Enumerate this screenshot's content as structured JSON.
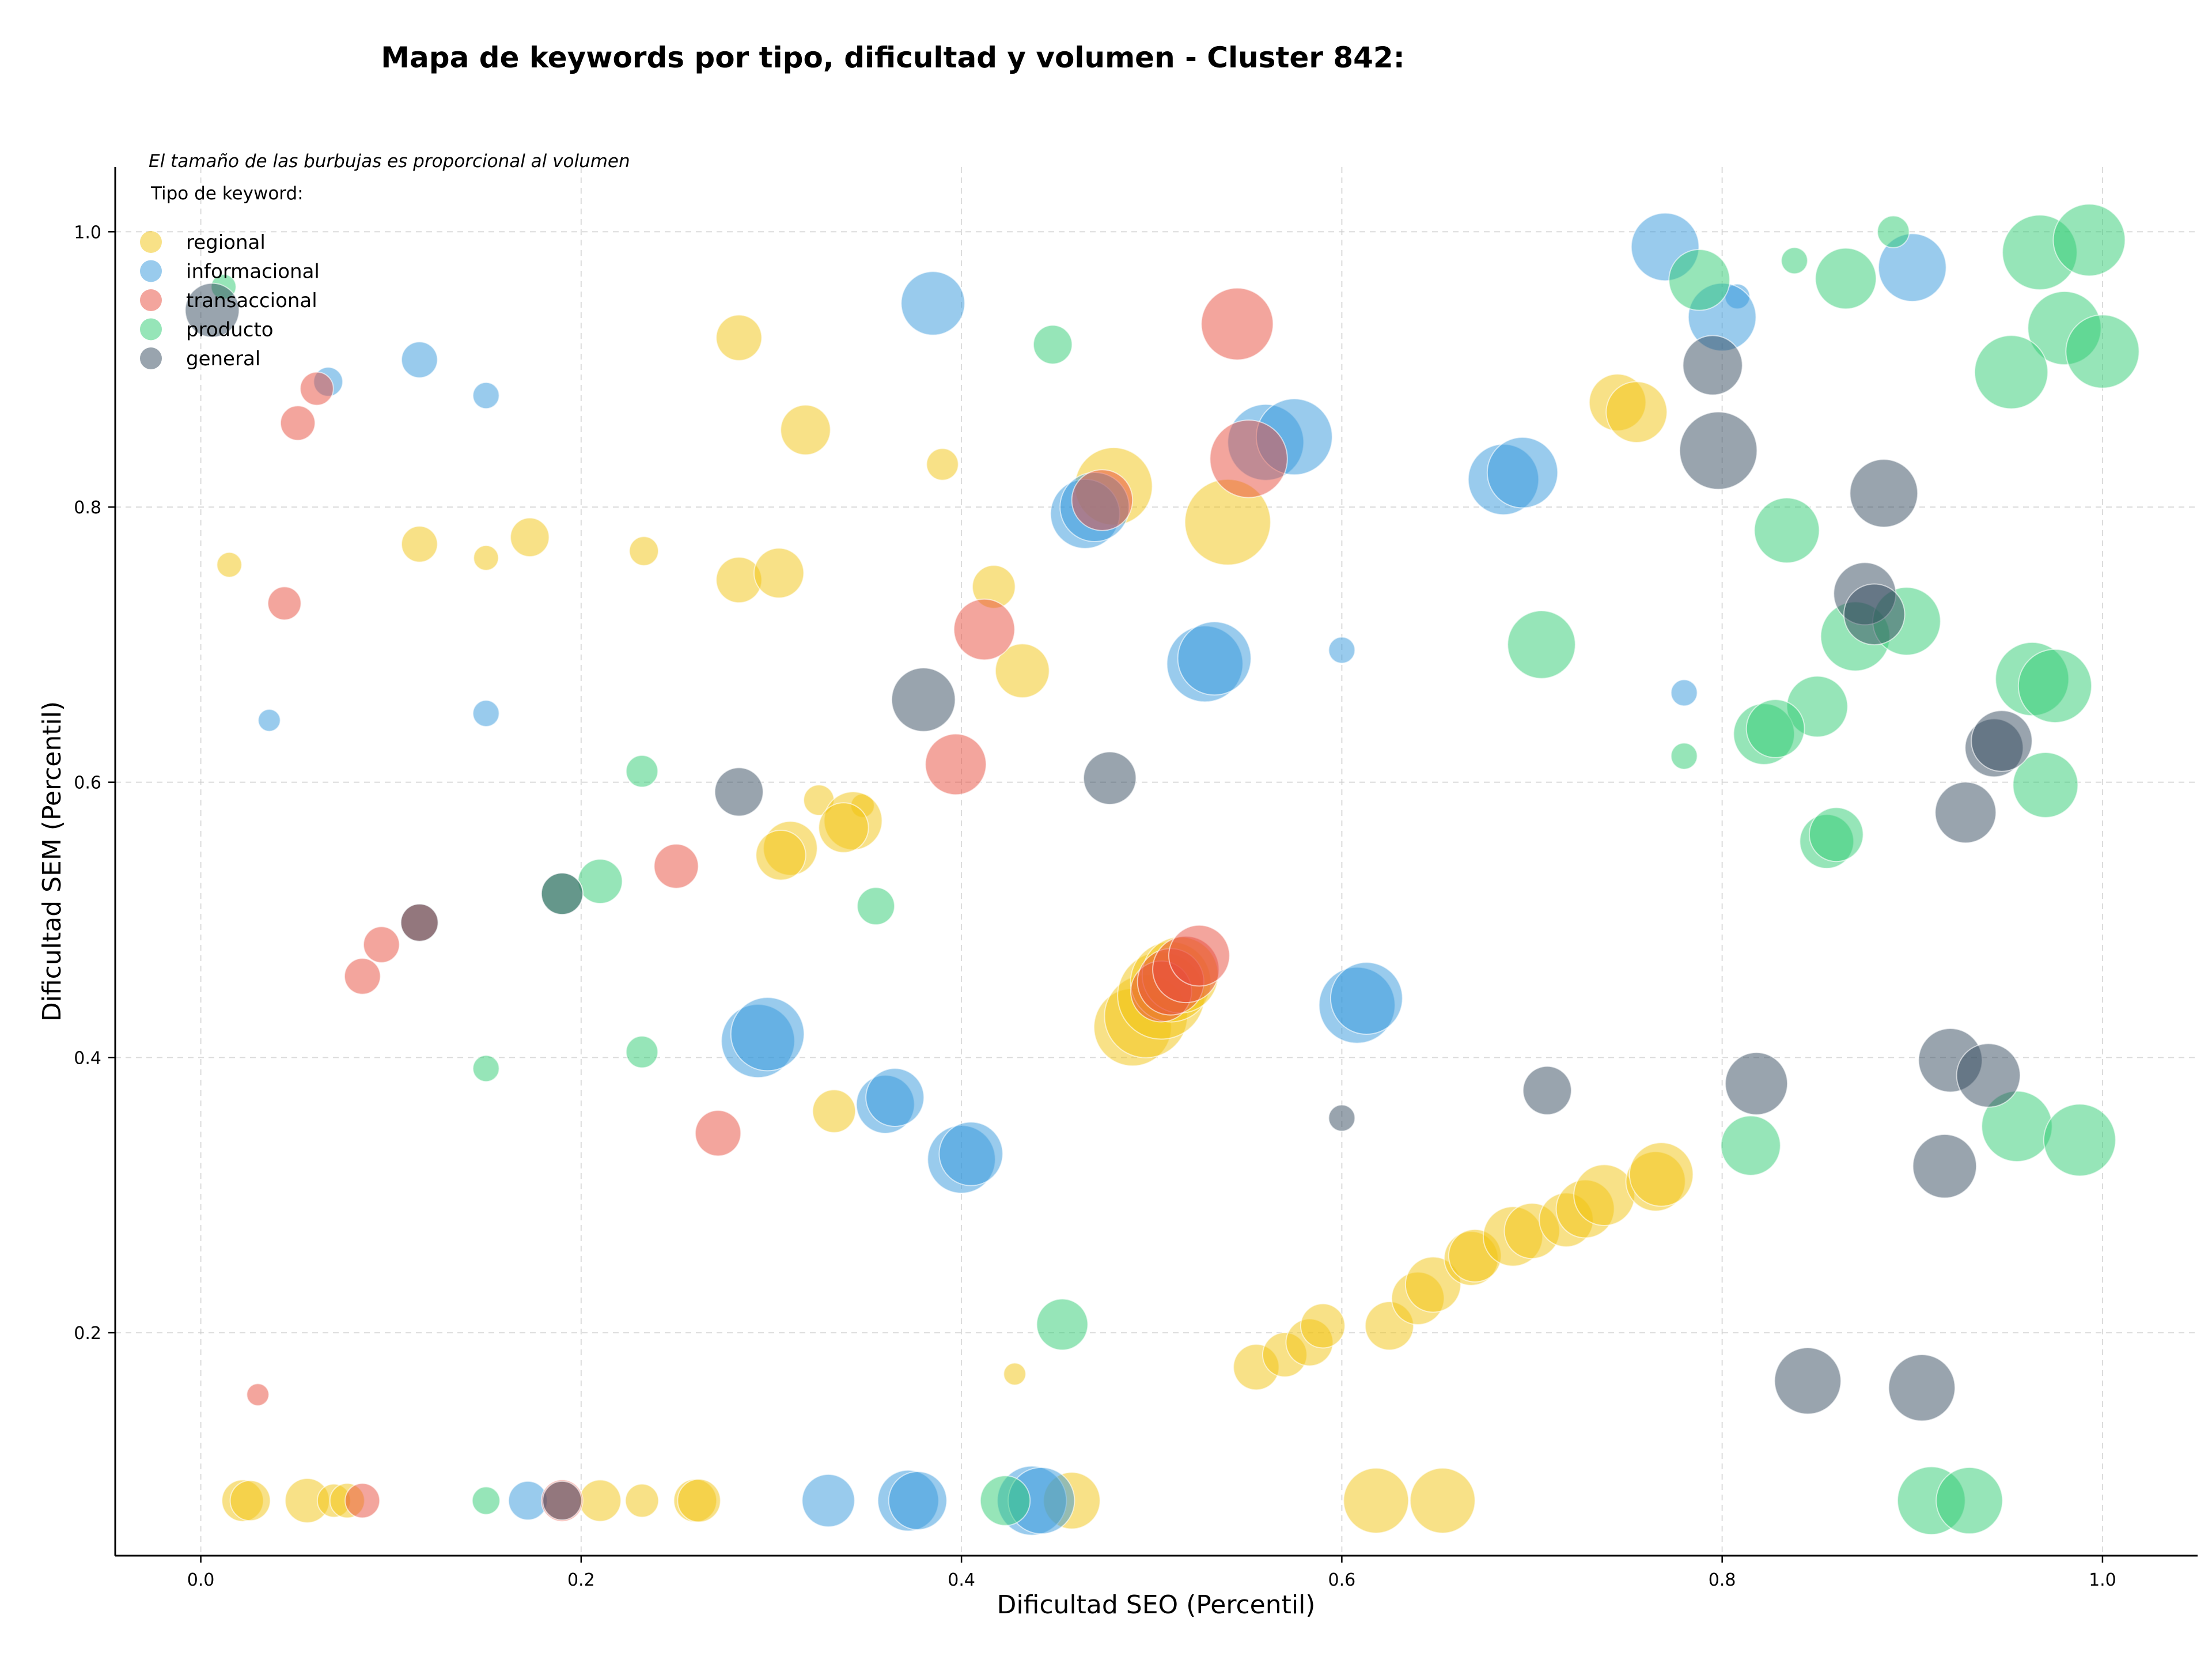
{
  "chart_data": {
    "type": "scatter",
    "title": "Mapa de keywords por tipo, dificultad y volumen - Cluster 842:",
    "xlabel": "Dificultad SEO (Percentil)",
    "ylabel": "Dificultad SEM (Percentil)",
    "xlim": [
      -0.045,
      1.05
    ],
    "ylim": [
      0.038,
      1.047
    ],
    "xticks": [
      "0.0",
      "0.2",
      "0.4",
      "0.6",
      "0.8",
      "1.0"
    ],
    "yticks": [
      "0.2",
      "0.4",
      "0.6",
      "0.8",
      "1.0"
    ],
    "grid": true,
    "size_note": "El tamaño de las burbujas es proporcional al volumen",
    "legend": {
      "title": "Tipo de keyword:",
      "placement": "top-left",
      "entries": [
        "regional",
        "informacional",
        "transaccional",
        "producto",
        "general"
      ]
    },
    "colors": {
      "regional": "#f1c40f",
      "informacional": "#3498db",
      "transaccional": "#e74c3c",
      "producto": "#2ecc71",
      "general": "#34495e"
    },
    "series": [
      {
        "name": "regional",
        "points": [
          {
            "x": 0.015,
            "y": 0.758,
            "s": 1.8
          },
          {
            "x": 0.115,
            "y": 0.773,
            "s": 2.6
          },
          {
            "x": 0.15,
            "y": 0.763,
            "s": 1.8
          },
          {
            "x": 0.173,
            "y": 0.778,
            "s": 2.8
          },
          {
            "x": 0.233,
            "y": 0.768,
            "s": 2.1
          },
          {
            "x": 0.283,
            "y": 0.923,
            "s": 3.3
          },
          {
            "x": 0.318,
            "y": 0.856,
            "s": 3.6
          },
          {
            "x": 0.39,
            "y": 0.831,
            "s": 2.3
          },
          {
            "x": 0.283,
            "y": 0.747,
            "s": 3.3
          },
          {
            "x": 0.304,
            "y": 0.752,
            "s": 3.6
          },
          {
            "x": 0.417,
            "y": 0.742,
            "s": 3.1
          },
          {
            "x": 0.432,
            "y": 0.681,
            "s": 3.9
          },
          {
            "x": 0.48,
            "y": 0.815,
            "s": 5.6
          },
          {
            "x": 0.54,
            "y": 0.789,
            "s": 6.2
          },
          {
            "x": 0.745,
            "y": 0.876,
            "s": 4.1
          },
          {
            "x": 0.755,
            "y": 0.869,
            "s": 4.4
          },
          {
            "x": 0.325,
            "y": 0.587,
            "s": 2.2
          },
          {
            "x": 0.348,
            "y": 0.583,
            "s": 1.7
          },
          {
            "x": 0.343,
            "y": 0.572,
            "s": 4.2
          },
          {
            "x": 0.338,
            "y": 0.567,
            "s": 3.6
          },
          {
            "x": 0.31,
            "y": 0.552,
            "s": 3.9
          },
          {
            "x": 0.305,
            "y": 0.547,
            "s": 3.6
          },
          {
            "x": 0.333,
            "y": 0.361,
            "s": 3.1
          },
          {
            "x": 0.428,
            "y": 0.17,
            "s": 1.6
          },
          {
            "x": 0.49,
            "y": 0.422,
            "s": 5.6
          },
          {
            "x": 0.497,
            "y": 0.43,
            "s": 6.0
          },
          {
            "x": 0.505,
            "y": 0.445,
            "s": 6.3
          },
          {
            "x": 0.51,
            "y": 0.455,
            "s": 5.8
          },
          {
            "x": 0.515,
            "y": 0.46,
            "s": 5.5
          },
          {
            "x": 0.555,
            "y": 0.175,
            "s": 3.3
          },
          {
            "x": 0.57,
            "y": 0.184,
            "s": 3.2
          },
          {
            "x": 0.583,
            "y": 0.193,
            "s": 3.4
          },
          {
            "x": 0.59,
            "y": 0.205,
            "s": 3.2
          },
          {
            "x": 0.625,
            "y": 0.205,
            "s": 3.5
          },
          {
            "x": 0.64,
            "y": 0.225,
            "s": 3.8
          },
          {
            "x": 0.648,
            "y": 0.235,
            "s": 4.0
          },
          {
            "x": 0.668,
            "y": 0.254,
            "s": 3.9
          },
          {
            "x": 0.67,
            "y": 0.256,
            "s": 3.8
          },
          {
            "x": 0.69,
            "y": 0.27,
            "s": 4.3
          },
          {
            "x": 0.7,
            "y": 0.274,
            "s": 4.0
          },
          {
            "x": 0.718,
            "y": 0.282,
            "s": 3.9
          },
          {
            "x": 0.728,
            "y": 0.29,
            "s": 4.2
          },
          {
            "x": 0.738,
            "y": 0.3,
            "s": 4.4
          },
          {
            "x": 0.765,
            "y": 0.31,
            "s": 4.3
          },
          {
            "x": 0.768,
            "y": 0.315,
            "s": 4.6
          },
          {
            "x": 0.022,
            "y": 0.078,
            "s": 3.0
          },
          {
            "x": 0.026,
            "y": 0.078,
            "s": 2.9
          },
          {
            "x": 0.056,
            "y": 0.078,
            "s": 3.2
          },
          {
            "x": 0.07,
            "y": 0.078,
            "s": 2.4
          },
          {
            "x": 0.077,
            "y": 0.078,
            "s": 2.5
          },
          {
            "x": 0.21,
            "y": 0.078,
            "s": 3.0
          },
          {
            "x": 0.232,
            "y": 0.078,
            "s": 2.4
          },
          {
            "x": 0.26,
            "y": 0.078,
            "s": 3.1
          },
          {
            "x": 0.262,
            "y": 0.078,
            "s": 3.1
          },
          {
            "x": 0.458,
            "y": 0.078,
            "s": 4.1
          },
          {
            "x": 0.618,
            "y": 0.078,
            "s": 4.7
          },
          {
            "x": 0.653,
            "y": 0.078,
            "s": 4.7
          }
        ]
      },
      {
        "name": "informacional",
        "points": [
          {
            "x": 0.067,
            "y": 0.891,
            "s": 2.1
          },
          {
            "x": 0.115,
            "y": 0.907,
            "s": 2.6
          },
          {
            "x": 0.15,
            "y": 0.881,
            "s": 1.9
          },
          {
            "x": 0.385,
            "y": 0.948,
            "s": 4.6
          },
          {
            "x": 0.036,
            "y": 0.645,
            "s": 1.6
          },
          {
            "x": 0.15,
            "y": 0.65,
            "s": 1.9
          },
          {
            "x": 0.465,
            "y": 0.795,
            "s": 5.0
          },
          {
            "x": 0.47,
            "y": 0.8,
            "s": 5.0
          },
          {
            "x": 0.56,
            "y": 0.847,
            "s": 5.5
          },
          {
            "x": 0.575,
            "y": 0.851,
            "s": 5.5
          },
          {
            "x": 0.528,
            "y": 0.686,
            "s": 5.5
          },
          {
            "x": 0.533,
            "y": 0.69,
            "s": 5.3
          },
          {
            "x": 0.6,
            "y": 0.696,
            "s": 1.9
          },
          {
            "x": 0.685,
            "y": 0.82,
            "s": 5.1
          },
          {
            "x": 0.695,
            "y": 0.825,
            "s": 5.1
          },
          {
            "x": 0.77,
            "y": 0.989,
            "s": 4.9
          },
          {
            "x": 0.808,
            "y": 0.953,
            "s": 1.8
          },
          {
            "x": 0.8,
            "y": 0.938,
            "s": 4.9
          },
          {
            "x": 0.9,
            "y": 0.974,
            "s": 4.9
          },
          {
            "x": 0.78,
            "y": 0.665,
            "s": 1.9
          },
          {
            "x": 0.293,
            "y": 0.412,
            "s": 5.3
          },
          {
            "x": 0.298,
            "y": 0.417,
            "s": 5.3
          },
          {
            "x": 0.36,
            "y": 0.366,
            "s": 4.2
          },
          {
            "x": 0.365,
            "y": 0.371,
            "s": 4.2
          },
          {
            "x": 0.4,
            "y": 0.326,
            "s": 4.9
          },
          {
            "x": 0.405,
            "y": 0.33,
            "s": 4.6
          },
          {
            "x": 0.608,
            "y": 0.438,
            "s": 5.5
          },
          {
            "x": 0.613,
            "y": 0.443,
            "s": 5.2
          },
          {
            "x": 0.172,
            "y": 0.078,
            "s": 2.8
          },
          {
            "x": 0.33,
            "y": 0.078,
            "s": 3.8
          },
          {
            "x": 0.372,
            "y": 0.078,
            "s": 4.4
          },
          {
            "x": 0.377,
            "y": 0.078,
            "s": 4.2
          },
          {
            "x": 0.437,
            "y": 0.078,
            "s": 5.0
          },
          {
            "x": 0.442,
            "y": 0.078,
            "s": 4.8
          }
        ]
      },
      {
        "name": "transaccional",
        "points": [
          {
            "x": 0.061,
            "y": 0.886,
            "s": 2.4
          },
          {
            "x": 0.051,
            "y": 0.861,
            "s": 2.5
          },
          {
            "x": 0.044,
            "y": 0.73,
            "s": 2.4
          },
          {
            "x": 0.545,
            "y": 0.933,
            "s": 5.2
          },
          {
            "x": 0.551,
            "y": 0.835,
            "s": 5.6
          },
          {
            "x": 0.474,
            "y": 0.805,
            "s": 4.4
          },
          {
            "x": 0.412,
            "y": 0.711,
            "s": 4.4
          },
          {
            "x": 0.397,
            "y": 0.613,
            "s": 4.4
          },
          {
            "x": 0.25,
            "y": 0.539,
            "s": 3.2
          },
          {
            "x": 0.095,
            "y": 0.482,
            "s": 2.6
          },
          {
            "x": 0.115,
            "y": 0.498,
            "s": 2.7
          },
          {
            "x": 0.085,
            "y": 0.459,
            "s": 2.6
          },
          {
            "x": 0.272,
            "y": 0.345,
            "s": 3.3
          },
          {
            "x": 0.03,
            "y": 0.155,
            "s": 1.6
          },
          {
            "x": 0.505,
            "y": 0.448,
            "s": 4.4
          },
          {
            "x": 0.51,
            "y": 0.455,
            "s": 4.8
          },
          {
            "x": 0.518,
            "y": 0.464,
            "s": 4.8
          },
          {
            "x": 0.525,
            "y": 0.474,
            "s": 4.4
          },
          {
            "x": 0.085,
            "y": 0.078,
            "s": 2.5
          },
          {
            "x": 0.19,
            "y": 0.078,
            "s": 3.0
          }
        ]
      },
      {
        "name": "producto",
        "points": [
          {
            "x": 0.012,
            "y": 0.96,
            "s": 1.8
          },
          {
            "x": 0.448,
            "y": 0.918,
            "s": 2.8
          },
          {
            "x": 0.788,
            "y": 0.965,
            "s": 4.4
          },
          {
            "x": 0.838,
            "y": 0.979,
            "s": 1.9
          },
          {
            "x": 0.865,
            "y": 0.966,
            "s": 4.4
          },
          {
            "x": 0.89,
            "y": 1.0,
            "s": 2.3
          },
          {
            "x": 0.967,
            "y": 0.985,
            "s": 5.4
          },
          {
            "x": 0.993,
            "y": 0.994,
            "s": 5.2
          },
          {
            "x": 0.98,
            "y": 0.93,
            "s": 5.3
          },
          {
            "x": 0.952,
            "y": 0.898,
            "s": 5.3
          },
          {
            "x": 1.0,
            "y": 0.913,
            "s": 5.3
          },
          {
            "x": 0.834,
            "y": 0.783,
            "s": 4.7
          },
          {
            "x": 0.705,
            "y": 0.7,
            "s": 4.9
          },
          {
            "x": 0.87,
            "y": 0.706,
            "s": 5.0
          },
          {
            "x": 0.897,
            "y": 0.717,
            "s": 4.9
          },
          {
            "x": 0.963,
            "y": 0.675,
            "s": 5.3
          },
          {
            "x": 0.975,
            "y": 0.67,
            "s": 5.3
          },
          {
            "x": 0.85,
            "y": 0.655,
            "s": 4.4
          },
          {
            "x": 0.822,
            "y": 0.635,
            "s": 4.4
          },
          {
            "x": 0.828,
            "y": 0.639,
            "s": 4.2
          },
          {
            "x": 0.78,
            "y": 0.619,
            "s": 1.9
          },
          {
            "x": 0.97,
            "y": 0.598,
            "s": 4.7
          },
          {
            "x": 0.855,
            "y": 0.557,
            "s": 3.9
          },
          {
            "x": 0.86,
            "y": 0.562,
            "s": 3.9
          },
          {
            "x": 0.232,
            "y": 0.608,
            "s": 2.3
          },
          {
            "x": 0.21,
            "y": 0.528,
            "s": 3.2
          },
          {
            "x": 0.19,
            "y": 0.519,
            "s": 3.0
          },
          {
            "x": 0.355,
            "y": 0.51,
            "s": 2.7
          },
          {
            "x": 0.232,
            "y": 0.404,
            "s": 2.3
          },
          {
            "x": 0.15,
            "y": 0.392,
            "s": 1.9
          },
          {
            "x": 0.453,
            "y": 0.206,
            "s": 3.7
          },
          {
            "x": 0.815,
            "y": 0.336,
            "s": 4.3
          },
          {
            "x": 0.955,
            "y": 0.35,
            "s": 5.1
          },
          {
            "x": 0.988,
            "y": 0.34,
            "s": 5.2
          },
          {
            "x": 0.15,
            "y": 0.078,
            "s": 2.0
          },
          {
            "x": 0.423,
            "y": 0.078,
            "s": 3.6
          },
          {
            "x": 0.91,
            "y": 0.078,
            "s": 4.9
          },
          {
            "x": 0.93,
            "y": 0.078,
            "s": 4.8
          }
        ]
      },
      {
        "name": "general",
        "points": [
          {
            "x": 0.006,
            "y": 0.943,
            "s": 3.9
          },
          {
            "x": 0.795,
            "y": 0.903,
            "s": 4.3
          },
          {
            "x": 0.798,
            "y": 0.841,
            "s": 5.6
          },
          {
            "x": 0.885,
            "y": 0.81,
            "s": 4.9
          },
          {
            "x": 0.875,
            "y": 0.737,
            "s": 4.5
          },
          {
            "x": 0.88,
            "y": 0.722,
            "s": 4.4
          },
          {
            "x": 0.38,
            "y": 0.66,
            "s": 4.6
          },
          {
            "x": 0.478,
            "y": 0.603,
            "s": 3.8
          },
          {
            "x": 0.283,
            "y": 0.593,
            "s": 3.5
          },
          {
            "x": 0.943,
            "y": 0.625,
            "s": 4.2
          },
          {
            "x": 0.947,
            "y": 0.63,
            "s": 4.4
          },
          {
            "x": 0.928,
            "y": 0.578,
            "s": 4.4
          },
          {
            "x": 0.19,
            "y": 0.519,
            "s": 3.0
          },
          {
            "x": 0.115,
            "y": 0.498,
            "s": 2.7
          },
          {
            "x": 0.6,
            "y": 0.356,
            "s": 1.9
          },
          {
            "x": 0.708,
            "y": 0.376,
            "s": 3.5
          },
          {
            "x": 0.818,
            "y": 0.381,
            "s": 4.5
          },
          {
            "x": 0.92,
            "y": 0.398,
            "s": 4.6
          },
          {
            "x": 0.94,
            "y": 0.387,
            "s": 4.6
          },
          {
            "x": 0.917,
            "y": 0.321,
            "s": 4.6
          },
          {
            "x": 0.845,
            "y": 0.165,
            "s": 4.8
          },
          {
            "x": 0.905,
            "y": 0.16,
            "s": 4.8
          },
          {
            "x": 0.19,
            "y": 0.078,
            "s": 2.8
          }
        ]
      }
    ]
  }
}
